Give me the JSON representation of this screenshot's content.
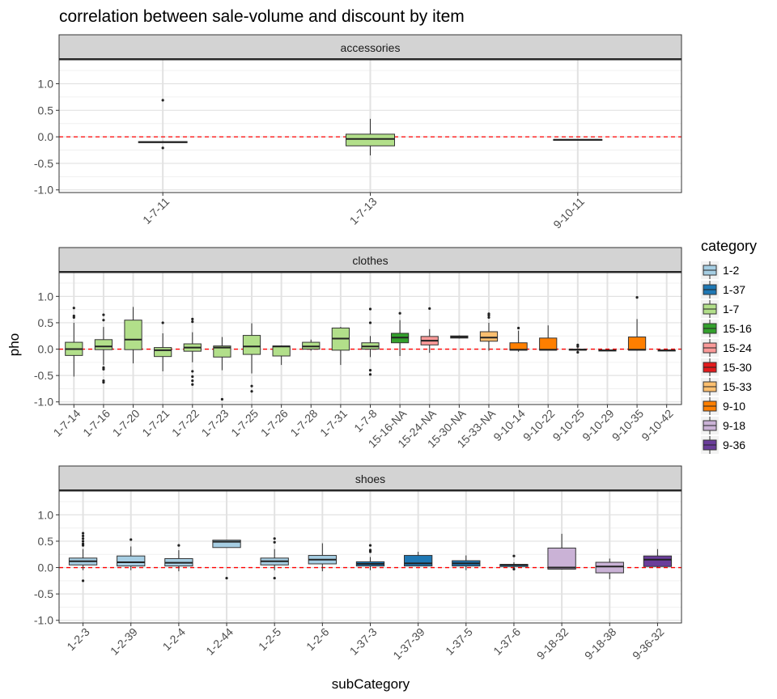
{
  "title": "correlation between sale-volume and discount by item",
  "xlabel": "subCategory",
  "ylabel": "pho",
  "legend": {
    "title": "category",
    "placement": "right",
    "items": [
      {
        "label": "1-2",
        "color": "#a6cee3"
      },
      {
        "label": "1-37",
        "color": "#1f78b4"
      },
      {
        "label": "1-7",
        "color": "#b2df8a"
      },
      {
        "label": "15-16",
        "color": "#33a02c"
      },
      {
        "label": "15-24",
        "color": "#fb9a99"
      },
      {
        "label": "15-30",
        "color": "#e31a1c"
      },
      {
        "label": "15-33",
        "color": "#fdbf6f"
      },
      {
        "label": "9-10",
        "color": "#ff7f00"
      },
      {
        "label": "9-18",
        "color": "#cab2d6"
      },
      {
        "label": "9-36",
        "color": "#6a3d9a"
      }
    ]
  },
  "chart_data": {
    "type": "box",
    "ylim": [
      -1.0,
      1.0
    ],
    "y_ticks": [
      -1.0,
      -0.5,
      0.0,
      0.5,
      1.0
    ],
    "y_tick_labels": [
      "-1.0",
      "-0.5",
      "0.0",
      "0.5",
      "1.0"
    ],
    "reference_line": {
      "y": 0,
      "style": "dashed",
      "color": "#ff0000"
    },
    "grid": true,
    "facets": [
      {
        "name": "accessories",
        "boxes": [
          {
            "cat": "1-7-11",
            "group": "1-7",
            "q1": -0.11,
            "med": -0.1,
            "q3": -0.09,
            "lo": -0.11,
            "hi": -0.08,
            "out": [
              0.69,
              -0.21
            ]
          },
          {
            "cat": "1-7-13",
            "group": "1-7",
            "q1": -0.17,
            "med": -0.04,
            "q3": 0.05,
            "lo": -0.35,
            "hi": 0.34,
            "out": []
          },
          {
            "cat": "9-10-11",
            "group": "9-10",
            "q1": -0.06,
            "med": -0.055,
            "q3": -0.05,
            "lo": -0.06,
            "hi": -0.05,
            "out": []
          }
        ]
      },
      {
        "name": "clothes",
        "boxes": [
          {
            "cat": "1-7-14",
            "group": "1-7",
            "q1": -0.12,
            "med": 0.0,
            "q3": 0.13,
            "lo": -0.52,
            "hi": 0.5,
            "out": [
              0.78,
              0.63,
              0.6
            ]
          },
          {
            "cat": "1-7-16",
            "group": "1-7",
            "q1": -0.01,
            "med": 0.05,
            "q3": 0.18,
            "lo": -0.3,
            "hi": 0.42,
            "out": [
              0.65,
              0.55,
              -0.35,
              -0.38,
              -0.6,
              -0.63
            ]
          },
          {
            "cat": "1-7-20",
            "group": "1-7",
            "q1": -0.01,
            "med": 0.18,
            "q3": 0.55,
            "lo": -0.27,
            "hi": 0.8,
            "out": []
          },
          {
            "cat": "1-7-21",
            "group": "1-7",
            "q1": -0.14,
            "med": -0.02,
            "q3": 0.03,
            "lo": -0.42,
            "hi": 0.3,
            "out": [
              0.5
            ]
          },
          {
            "cat": "1-7-22",
            "group": "1-7",
            "q1": -0.04,
            "med": 0.03,
            "q3": 0.1,
            "lo": -0.25,
            "hi": 0.32,
            "out": [
              0.57,
              0.52,
              -0.42,
              -0.52,
              -0.6,
              -0.67
            ]
          },
          {
            "cat": "1-7-23",
            "group": "1-7",
            "q1": -0.15,
            "med": 0.03,
            "q3": 0.06,
            "lo": -0.4,
            "hi": 0.23,
            "out": [
              -0.95
            ]
          },
          {
            "cat": "1-7-25",
            "group": "1-7",
            "q1": -0.1,
            "med": 0.05,
            "q3": 0.26,
            "lo": -0.46,
            "hi": 0.49,
            "out": [
              -0.7,
              -0.8
            ]
          },
          {
            "cat": "1-7-26",
            "group": "1-7",
            "q1": -0.13,
            "med": 0.05,
            "q3": 0.06,
            "lo": -0.3,
            "hi": 0.07,
            "out": []
          },
          {
            "cat": "1-7-28",
            "group": "1-7",
            "q1": 0.0,
            "med": 0.05,
            "q3": 0.13,
            "lo": -0.03,
            "hi": 0.18,
            "out": []
          },
          {
            "cat": "1-7-31",
            "group": "1-7",
            "q1": -0.02,
            "med": 0.2,
            "q3": 0.4,
            "lo": -0.3,
            "hi": 0.42,
            "out": []
          },
          {
            "cat": "1-7-8",
            "group": "1-7",
            "q1": 0.0,
            "med": 0.05,
            "q3": 0.12,
            "lo": -0.15,
            "hi": 0.25,
            "out": [
              0.76,
              0.5,
              -0.4,
              -0.48
            ]
          },
          {
            "cat": "15-16-NA",
            "group": "15-16",
            "q1": 0.12,
            "med": 0.22,
            "q3": 0.3,
            "lo": -0.13,
            "hi": 0.55,
            "out": [
              0.68
            ]
          },
          {
            "cat": "15-24-NA",
            "group": "15-24",
            "q1": 0.08,
            "med": 0.16,
            "q3": 0.24,
            "lo": -0.07,
            "hi": 0.38,
            "out": [
              0.77
            ]
          },
          {
            "cat": "15-30-NA",
            "group": "15-30",
            "q1": 0.21,
            "med": 0.23,
            "q3": 0.25,
            "lo": 0.2,
            "hi": 0.26,
            "out": []
          },
          {
            "cat": "15-33-NA",
            "group": "15-33",
            "q1": 0.15,
            "med": 0.22,
            "q3": 0.33,
            "lo": -0.03,
            "hi": 0.5,
            "out": [
              0.67,
              0.64,
              0.6
            ]
          },
          {
            "cat": "9-10-14",
            "group": "9-10",
            "q1": -0.02,
            "med": -0.01,
            "q3": 0.12,
            "lo": -0.05,
            "hi": 0.35,
            "out": [
              0.4
            ]
          },
          {
            "cat": "9-10-22",
            "group": "9-10",
            "q1": -0.02,
            "med": -0.01,
            "q3": 0.21,
            "lo": -0.02,
            "hi": 0.45,
            "out": []
          },
          {
            "cat": "9-10-25",
            "group": "9-10",
            "q1": -0.02,
            "med": -0.01,
            "q3": 0.0,
            "lo": -0.04,
            "hi": 0.02,
            "out": [
              0.08,
              0.05,
              -0.06
            ]
          },
          {
            "cat": "9-10-29",
            "group": "9-10",
            "q1": -0.03,
            "med": -0.025,
            "q3": -0.02,
            "lo": -0.03,
            "hi": -0.02,
            "out": []
          },
          {
            "cat": "9-10-35",
            "group": "9-10",
            "q1": -0.02,
            "med": -0.01,
            "q3": 0.23,
            "lo": -0.03,
            "hi": 0.57,
            "out": [
              0.98
            ]
          },
          {
            "cat": "9-10-42",
            "group": "9-10",
            "q1": -0.03,
            "med": -0.025,
            "q3": -0.02,
            "lo": -0.03,
            "hi": -0.02,
            "out": []
          }
        ]
      },
      {
        "name": "shoes",
        "boxes": [
          {
            "cat": "1-2-3",
            "group": "1-2",
            "q1": 0.05,
            "med": 0.12,
            "q3": 0.18,
            "lo": -0.05,
            "hi": 0.35,
            "out": [
              0.65,
              0.6,
              0.55,
              0.5,
              0.45,
              0.42,
              -0.25
            ]
          },
          {
            "cat": "1-2-39",
            "group": "1-2",
            "q1": 0.03,
            "med": 0.1,
            "q3": 0.22,
            "lo": -0.05,
            "hi": 0.4,
            "out": [
              0.53
            ]
          },
          {
            "cat": "1-2-4",
            "group": "1-2",
            "q1": 0.03,
            "med": 0.09,
            "q3": 0.17,
            "lo": -0.07,
            "hi": 0.33,
            "out": [
              0.42
            ]
          },
          {
            "cat": "1-2-44",
            "group": "1-2",
            "q1": 0.38,
            "med": 0.49,
            "q3": 0.52,
            "lo": 0.38,
            "hi": 0.52,
            "out": [
              -0.2
            ]
          },
          {
            "cat": "1-2-5",
            "group": "1-2",
            "q1": 0.05,
            "med": 0.12,
            "q3": 0.18,
            "lo": -0.05,
            "hi": 0.35,
            "out": [
              0.55,
              0.48,
              -0.2
            ]
          },
          {
            "cat": "1-2-6",
            "group": "1-2",
            "q1": 0.07,
            "med": 0.15,
            "q3": 0.23,
            "lo": -0.07,
            "hi": 0.46,
            "out": []
          },
          {
            "cat": "1-37-3",
            "group": "1-37",
            "q1": 0.03,
            "med": 0.07,
            "q3": 0.11,
            "lo": -0.05,
            "hi": 0.2,
            "out": [
              0.42,
              0.33,
              0.3
            ]
          },
          {
            "cat": "1-37-39",
            "group": "1-37",
            "q1": 0.03,
            "med": 0.08,
            "q3": 0.23,
            "lo": 0.03,
            "hi": 0.3,
            "out": []
          },
          {
            "cat": "1-37-5",
            "group": "1-37",
            "q1": 0.03,
            "med": 0.08,
            "q3": 0.13,
            "lo": -0.05,
            "hi": 0.23,
            "out": []
          },
          {
            "cat": "1-37-6",
            "group": "1-37",
            "q1": 0.02,
            "med": 0.05,
            "q3": 0.06,
            "lo": -0.01,
            "hi": 0.1,
            "out": [
              0.22,
              -0.03
            ]
          },
          {
            "cat": "9-18-32",
            "group": "9-18",
            "q1": -0.03,
            "med": 0.0,
            "q3": 0.37,
            "lo": -0.04,
            "hi": 0.64,
            "out": []
          },
          {
            "cat": "9-18-38",
            "group": "9-18",
            "q1": -0.1,
            "med": 0.02,
            "q3": 0.1,
            "lo": -0.22,
            "hi": 0.17,
            "out": []
          },
          {
            "cat": "9-36-32",
            "group": "9-36",
            "q1": 0.02,
            "med": 0.15,
            "q3": 0.22,
            "lo": 0.01,
            "hi": 0.35,
            "out": []
          }
        ]
      }
    ]
  }
}
